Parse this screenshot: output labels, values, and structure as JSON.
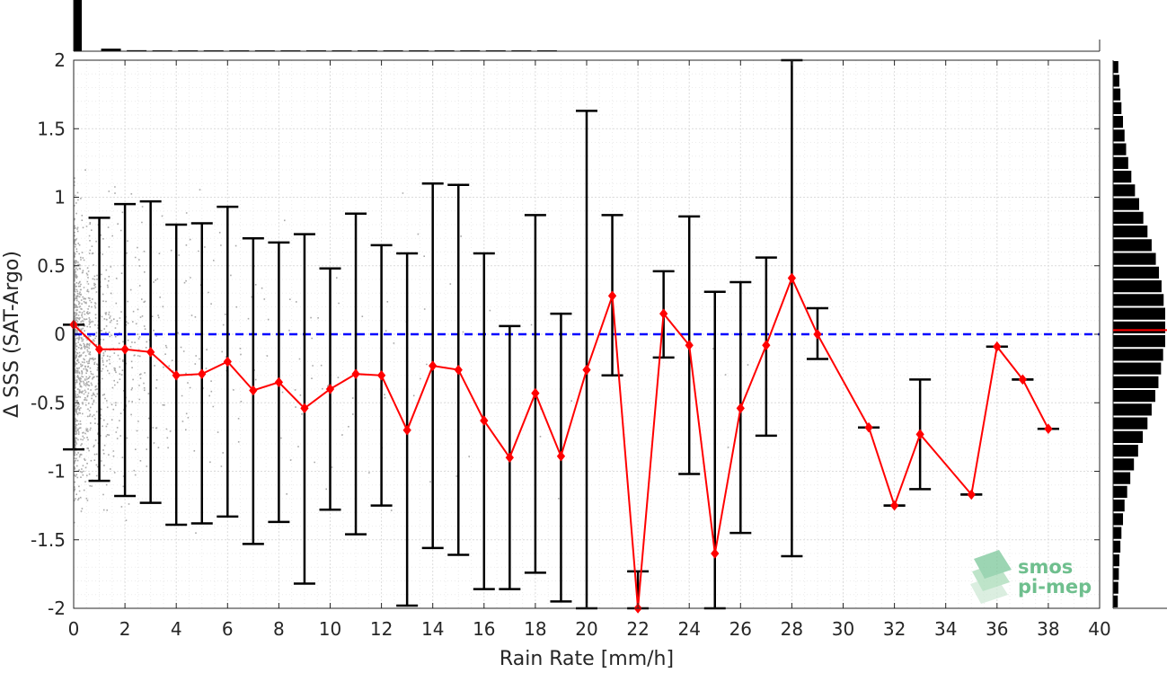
{
  "chart_data": {
    "type": "scatter",
    "title": "",
    "xlabel": "Rain Rate [mm/h]",
    "ylabel": "Δ SSS (SAT-Argo)",
    "xlim": [
      0,
      40
    ],
    "ylim": [
      -2,
      2
    ],
    "xticks": [
      0,
      2,
      4,
      6,
      8,
      10,
      12,
      14,
      16,
      18,
      20,
      22,
      24,
      26,
      28,
      30,
      32,
      34,
      36,
      38,
      40
    ],
    "yticks": [
      -2,
      -1.5,
      -1,
      -0.5,
      0,
      0.5,
      1,
      1.5,
      2
    ],
    "xtick_labels": [
      "0",
      "2",
      "4",
      "6",
      "8",
      "10",
      "12",
      "14",
      "16",
      "18",
      "20",
      "22",
      "24",
      "26",
      "28",
      "30",
      "32",
      "34",
      "36",
      "38",
      "40"
    ],
    "ytick_labels": [
      "-2",
      "-1.5",
      "-1",
      "-0.5",
      "0",
      "0.5",
      "1",
      "1.5",
      "2"
    ],
    "grid": true,
    "reference_line": {
      "y": 0,
      "style": "dashed",
      "color": "#0000ff"
    },
    "binned_mean": {
      "color": "#ff0000",
      "x": [
        0,
        1,
        2,
        3,
        4,
        5,
        6,
        7,
        8,
        9,
        10,
        11,
        12,
        13,
        14,
        15,
        16,
        17,
        18,
        19,
        20,
        21,
        22,
        23,
        24,
        25,
        26,
        27,
        28,
        29,
        31,
        32,
        33,
        35,
        36,
        37,
        38
      ],
      "y": [
        0.07,
        -0.11,
        -0.11,
        -0.13,
        -0.3,
        -0.29,
        -0.2,
        -0.41,
        -0.35,
        -0.54,
        -0.4,
        -0.29,
        -0.3,
        -0.7,
        -0.23,
        -0.26,
        -0.63,
        -0.9,
        -0.43,
        -0.89,
        -0.26,
        0.28,
        -2.0,
        0.15,
        -0.08,
        -1.6,
        -0.54,
        -0.08,
        0.41,
        0.0,
        -0.68,
        -1.25,
        -0.73,
        -1.17,
        -0.09,
        -0.33,
        -0.69
      ],
      "upper": [
        0.07,
        0.85,
        0.95,
        0.97,
        0.8,
        0.81,
        0.93,
        0.7,
        0.67,
        0.73,
        0.48,
        0.88,
        0.65,
        0.59,
        1.1,
        1.09,
        0.59,
        0.06,
        0.87,
        0.15,
        1.63,
        0.87,
        -1.73,
        0.46,
        0.86,
        0.31,
        0.38,
        0.56,
        2.0,
        0.19,
        -0.68,
        -1.25,
        -0.33,
        -1.17,
        -0.09,
        -0.33,
        -0.69
      ],
      "lower": [
        -0.84,
        -1.07,
        -1.18,
        -1.23,
        -1.39,
        -1.38,
        -1.33,
        -1.53,
        -1.37,
        -1.82,
        -1.28,
        -1.46,
        -1.25,
        -1.98,
        -1.56,
        -1.61,
        -1.86,
        -1.86,
        -1.74,
        -1.95,
        -2.0,
        -0.3,
        -2.0,
        -0.17,
        -1.02,
        -2.0,
        -1.45,
        -0.74,
        -1.62,
        -0.18,
        -0.68,
        -1.25,
        -1.13,
        -1.17,
        -0.09,
        -0.33,
        -0.69
      ]
    },
    "scatter_cloud": {
      "color": "#8c8c8c",
      "description_of_density": "dense near 0-3 mm/h, sparse beyond 10 mm/h",
      "x_density_profile": [
        [
          0,
          1.0
        ],
        [
          1,
          0.55
        ],
        [
          2,
          0.3
        ],
        [
          4,
          0.15
        ],
        [
          8,
          0.07
        ],
        [
          14,
          0.03
        ],
        [
          20,
          0.012
        ],
        [
          28,
          0.004
        ],
        [
          40,
          0.0
        ]
      ]
    },
    "top_histogram": {
      "bins": [
        0,
        1,
        2,
        3,
        4,
        5,
        6,
        7,
        8,
        9,
        10,
        11,
        12,
        13,
        14,
        15,
        16,
        17,
        18
      ],
      "relative_counts": [
        1.0,
        0.05,
        0.02,
        0.015,
        0.01,
        0.01,
        0.008,
        0.007,
        0.006,
        0.005,
        0.005,
        0.004,
        0.004,
        0.003,
        0.003,
        0.003,
        0.002,
        0.002,
        0.002
      ]
    },
    "right_histogram": {
      "bin_centers": [
        1.95,
        1.85,
        1.75,
        1.65,
        1.55,
        1.45,
        1.35,
        1.25,
        1.15,
        1.05,
        0.95,
        0.85,
        0.75,
        0.65,
        0.55,
        0.45,
        0.35,
        0.25,
        0.15,
        0.05,
        -0.05,
        -0.15,
        -0.25,
        -0.35,
        -0.45,
        -0.55,
        -0.65,
        -0.75,
        -0.85,
        -0.95,
        -1.05,
        -1.15,
        -1.25,
        -1.35,
        -1.45,
        -1.55,
        -1.65,
        -1.75,
        -1.85,
        -1.95
      ],
      "relative_counts": [
        0.1,
        0.12,
        0.14,
        0.16,
        0.19,
        0.22,
        0.25,
        0.29,
        0.35,
        0.42,
        0.5,
        0.58,
        0.66,
        0.74,
        0.82,
        0.88,
        0.93,
        0.97,
        1.0,
        1.0,
        1.0,
        0.96,
        0.92,
        0.87,
        0.81,
        0.74,
        0.66,
        0.57,
        0.48,
        0.4,
        0.33,
        0.27,
        0.22,
        0.19,
        0.16,
        0.14,
        0.12,
        0.11,
        0.1,
        0.09
      ],
      "mean_line_y": 0.03,
      "mean_line_color": "#ff0000"
    }
  },
  "logo": {
    "line1": "smos",
    "line2": "pi-mep"
  }
}
